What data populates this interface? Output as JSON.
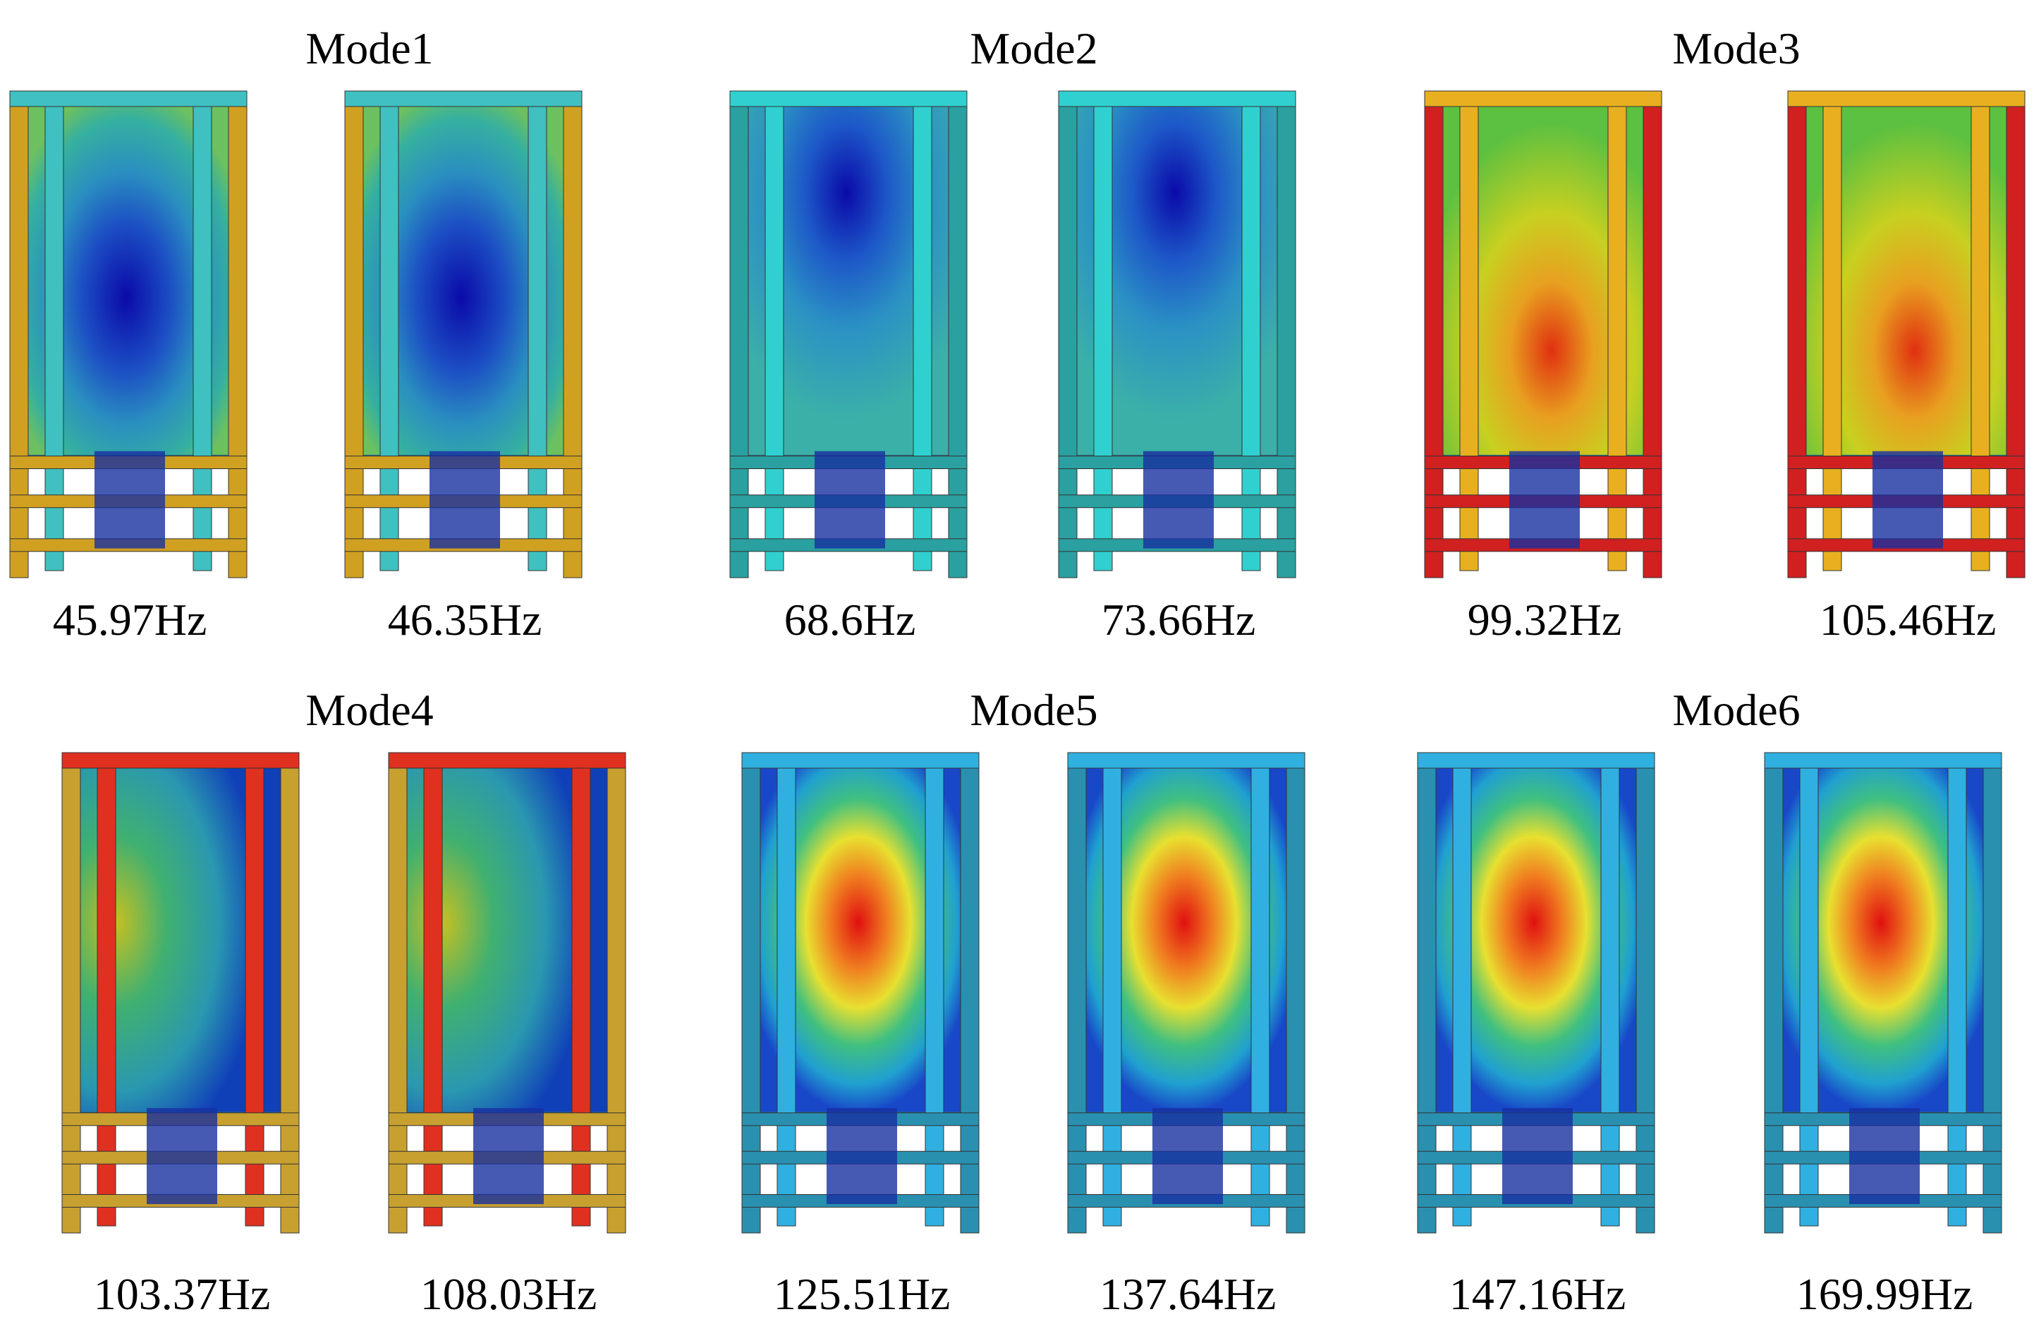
{
  "panels": [
    {
      "title": "Mode1",
      "labels": [
        "45.97Hz",
        "46.35Hz"
      ]
    },
    {
      "title": "Mode2",
      "labels": [
        "68.6Hz",
        "73.66Hz"
      ]
    },
    {
      "title": "Mode3",
      "labels": [
        "99.32Hz",
        "105.46Hz"
      ]
    },
    {
      "title": "Mode4",
      "labels": [
        "103.37Hz",
        "108.03Hz"
      ]
    },
    {
      "title": "Mode5",
      "labels": [
        "125.51Hz",
        "137.64Hz"
      ]
    },
    {
      "title": "Mode6",
      "labels": [
        "147.16Hz",
        "169.99Hz"
      ]
    }
  ]
}
